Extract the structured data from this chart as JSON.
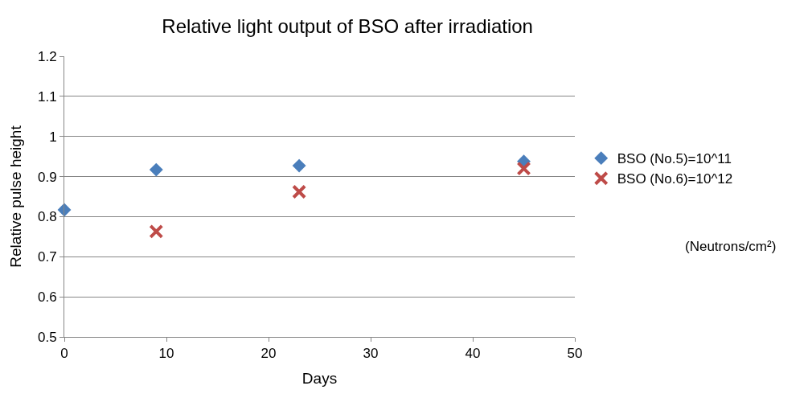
{
  "chart_data": {
    "type": "scatter",
    "title": "Relative light output of BSO after irradiation",
    "xlabel": "Days",
    "ylabel": "Relative pulse height",
    "series": [
      {
        "name": "BSO (No.5)=10^11",
        "color": "#4a7ebb",
        "marker": "diamond",
        "x": [
          0,
          9,
          23,
          45
        ],
        "values": [
          0.817,
          0.917,
          0.927,
          0.938
        ]
      },
      {
        "name": "BSO (No.6)=10^12",
        "color": "#be4b48",
        "marker": "cross",
        "x": [
          9,
          23,
          45
        ],
        "values": [
          0.763,
          0.862,
          0.92
        ]
      }
    ],
    "annotations": [
      "(Neutrons/cm²)"
    ],
    "xlim": [
      0,
      50
    ],
    "xticks": [
      0,
      10,
      20,
      30,
      40,
      50
    ],
    "ylim": [
      0.5,
      1.2
    ],
    "yticks": [
      0.5,
      0.6,
      0.7,
      0.8,
      0.9,
      1,
      1.1,
      1.2
    ],
    "grid": "y",
    "legend": "right"
  }
}
